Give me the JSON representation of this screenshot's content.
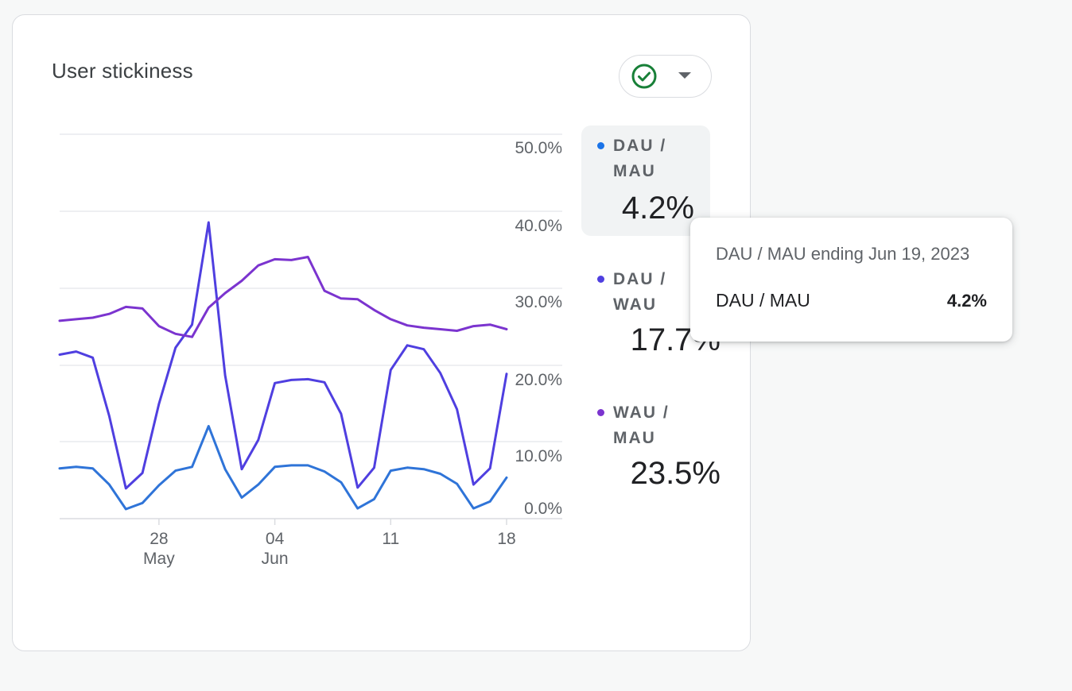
{
  "card": {
    "title": "User stickiness"
  },
  "status": {
    "icon": "check-circle-icon",
    "dropdown_icon": "caret-down-icon",
    "color": "#188038"
  },
  "legend": [
    {
      "label": "DAU / MAU",
      "value": "4.2%",
      "color": "#1a73e8",
      "selected": true
    },
    {
      "label": "DAU / WAU",
      "value": "17.7%",
      "color": "#4f3fe0"
    },
    {
      "label": "WAU / MAU",
      "value": "23.5%",
      "color": "#7b34cf"
    }
  ],
  "tooltip": {
    "title": "DAU / MAU ending Jun 19, 2023",
    "metric": "DAU / MAU",
    "value": "4.2%"
  },
  "chart_data": {
    "type": "line",
    "title": "User stickiness",
    "x_start": "May 22, 2023",
    "x_end": "Jun 19, 2023",
    "x_tick_labels": [
      {
        "day": "28",
        "month": "May",
        "index": 6
      },
      {
        "day": "04",
        "month": "Jun",
        "index": 13
      },
      {
        "day": "11",
        "month": "",
        "index": 20
      },
      {
        "day": "18",
        "month": "",
        "index": 27
      }
    ],
    "y_tick_labels": [
      "0.0%",
      "10.0%",
      "20.0%",
      "30.0%",
      "40.0%",
      "50.0%"
    ],
    "ylim": [
      0,
      50
    ],
    "series": [
      {
        "name": "DAU / MAU",
        "color": "#2f74d8",
        "values": [
          5.4,
          5.6,
          5.4,
          3.3,
          0.1,
          0.9,
          3.2,
          5.1,
          5.6,
          10.9,
          5.3,
          1.6,
          3.3,
          5.6,
          5.8,
          5.8,
          5.0,
          3.6,
          0.2,
          1.4,
          5.1,
          5.5,
          5.3,
          4.7,
          3.4,
          0.2,
          1.1,
          4.2
        ]
      },
      {
        "name": "DAU / WAU",
        "color": "#4f3fe0",
        "values": [
          20.2,
          20.6,
          19.8,
          12.2,
          2.8,
          4.8,
          13.8,
          21.1,
          24.1,
          37.4,
          17.5,
          5.3,
          9.1,
          16.5,
          16.9,
          17.0,
          16.6,
          12.5,
          2.9,
          5.5,
          18.2,
          21.4,
          20.9,
          17.8,
          13.1,
          3.3,
          5.4,
          17.7
        ]
      },
      {
        "name": "WAU / MAU",
        "color": "#7b34cf",
        "values": [
          24.6,
          24.8,
          25.0,
          25.5,
          26.4,
          26.2,
          23.9,
          22.9,
          22.5,
          26.3,
          28.2,
          29.8,
          31.8,
          32.6,
          32.5,
          32.9,
          28.5,
          27.5,
          27.4,
          26.0,
          24.8,
          24.0,
          23.7,
          23.5,
          23.3,
          23.9,
          24.1,
          23.5
        ]
      }
    ]
  }
}
